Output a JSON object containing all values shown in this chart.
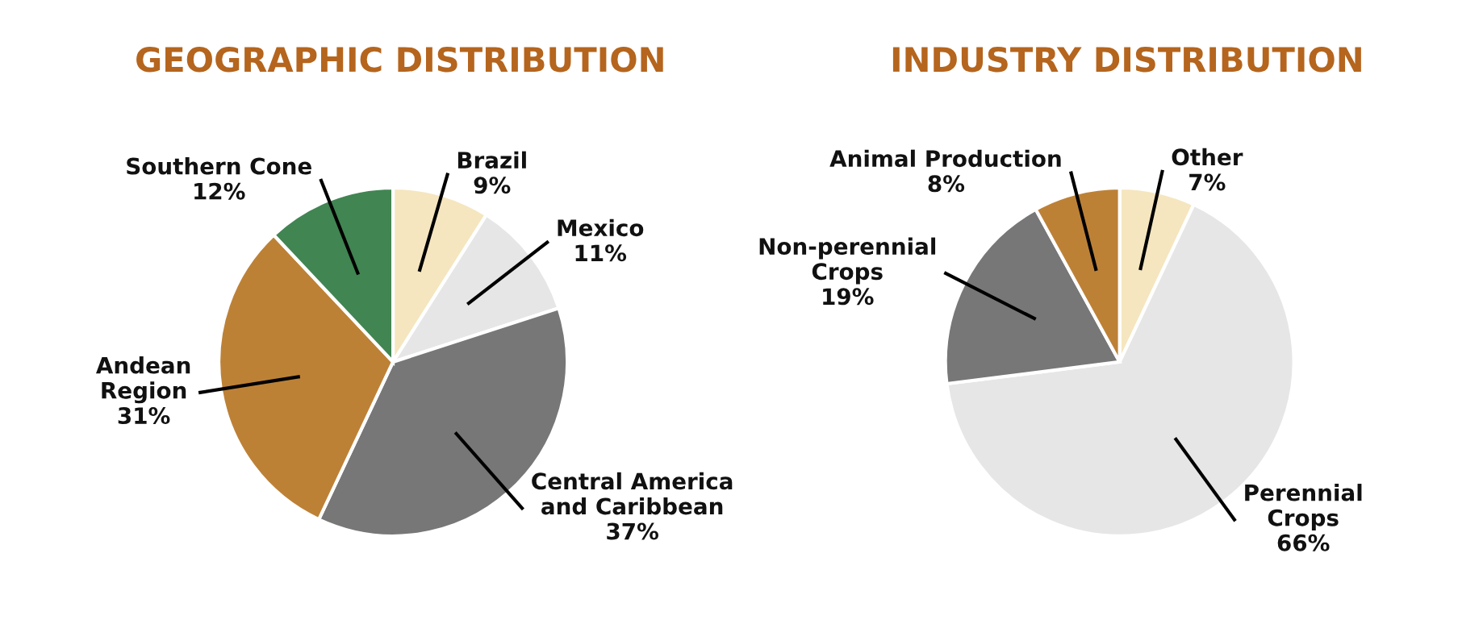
{
  "chart_data": [
    {
      "type": "pie",
      "title": "GEOGRAPHIC DISTRIBUTION",
      "categories": [
        "Brazil",
        "Mexico",
        "Central America\nand Caribbean",
        "Andean\nRegion",
        "Southern Cone"
      ],
      "values": [
        9,
        11,
        37,
        31,
        12
      ],
      "colors": [
        "#f5e6bf",
        "#e6e6e6",
        "#777777",
        "#bd8136",
        "#418552"
      ],
      "value_labels": [
        "9%",
        "11%",
        "37%",
        "31%",
        "12%"
      ]
    },
    {
      "type": "pie",
      "title": "INDUSTRY DISTRIBUTION",
      "categories": [
        "Other",
        "Perennial\nCrops",
        "Non-perennial\nCrops",
        "Animal Production"
      ],
      "values": [
        7,
        66,
        19,
        8
      ],
      "colors": [
        "#f5e6bf",
        "#e6e6e6",
        "#777777",
        "#bd8136"
      ],
      "value_labels": [
        "7%",
        "66%",
        "19%",
        "8%"
      ]
    }
  ]
}
